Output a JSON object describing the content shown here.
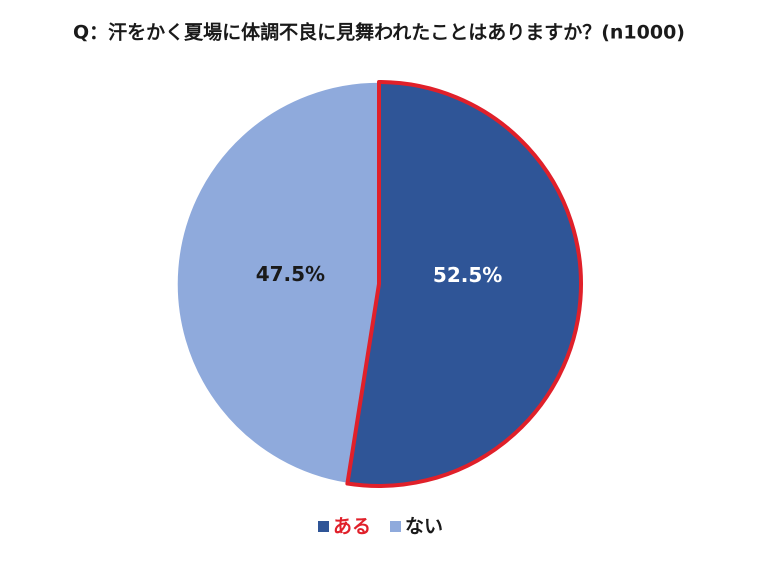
{
  "chart_data": {
    "type": "pie",
    "title": "Q：汗をかく夏場に体調不良に見舞われたことはありますか？(n1000)",
    "categories": [
      "ある",
      "ない"
    ],
    "values": [
      52.5,
      47.5
    ],
    "value_labels": [
      "52.5%",
      "47.5%"
    ],
    "colors": [
      "#2f5597",
      "#8faadc"
    ],
    "label_colors": [
      "#ffffff",
      "#1a1a1a"
    ],
    "highlight": {
      "index": 0,
      "color": "#e0202a"
    },
    "legend": "bottom"
  }
}
